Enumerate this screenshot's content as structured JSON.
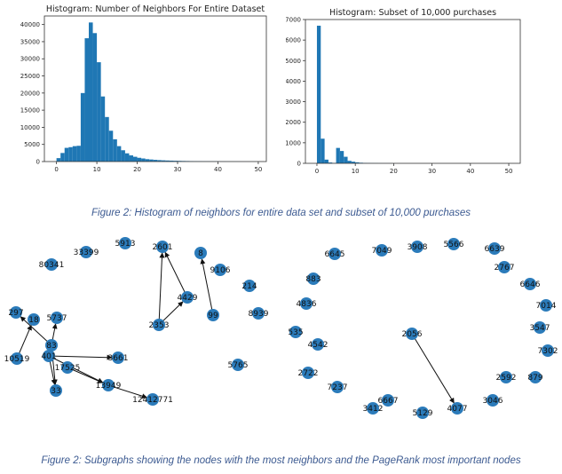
{
  "chart_data": [
    {
      "type": "bar",
      "title": "Histogram:  Number of Neighbors For Entire Dataset",
      "xlabel": "",
      "ylabel": "",
      "xlim": [
        -3,
        52
      ],
      "ylim": [
        0,
        42500
      ],
      "xticks": [
        0,
        10,
        20,
        30,
        40,
        50
      ],
      "yticks": [
        0,
        5000,
        10000,
        15000,
        20000,
        25000,
        30000,
        35000,
        40000
      ],
      "bin_width": 1,
      "bin_starts": [
        0,
        1,
        2,
        3,
        4,
        5,
        6,
        7,
        8,
        9,
        10,
        11,
        12,
        13,
        14,
        15,
        16,
        17,
        18,
        19,
        20,
        21,
        22,
        23,
        24,
        25,
        26,
        27,
        28,
        29,
        30,
        31,
        32,
        33,
        34,
        35,
        36,
        37,
        38,
        39,
        40,
        41,
        42,
        43,
        44,
        45,
        46,
        47,
        48,
        49,
        50
      ],
      "values": [
        1000,
        2500,
        4000,
        4200,
        4500,
        4600,
        20000,
        36000,
        40600,
        37500,
        29000,
        19000,
        13000,
        9000,
        6500,
        4500,
        3300,
        2400,
        1800,
        1400,
        1100,
        900,
        700,
        600,
        500,
        420,
        360,
        310,
        270,
        230,
        200,
        170,
        150,
        130,
        110,
        100,
        90,
        80,
        70,
        60,
        50,
        45,
        40,
        35,
        30,
        25,
        20,
        18,
        15,
        12,
        10
      ]
    },
    {
      "type": "bar",
      "title": "Histogram: Subset of 10,000 purchases",
      "xlabel": "",
      "ylabel": "",
      "xlim": [
        -3,
        53
      ],
      "ylim": [
        0,
        7000
      ],
      "xticks": [
        0,
        10,
        20,
        30,
        40,
        50
      ],
      "yticks": [
        0,
        1000,
        2000,
        3000,
        4000,
        5000,
        6000,
        7000
      ],
      "bin_width": 1,
      "bin_starts": [
        0,
        1,
        2,
        3,
        4,
        5,
        6,
        7,
        8,
        9,
        10,
        11,
        12,
        13,
        14,
        15,
        16,
        17,
        18,
        19
      ],
      "values": [
        6700,
        1200,
        180,
        40,
        20,
        750,
        600,
        320,
        120,
        80,
        50,
        30,
        20,
        15,
        10,
        8,
        6,
        5,
        4,
        3
      ]
    }
  ],
  "captions": {
    "figure1": "Figure 2: Histogram of neighbors for entire data set and subset of 10,000 purchases",
    "figure2": "Figure 2: Subgraphs showing the nodes with the most neighbors and the PageRank most important nodes"
  },
  "graphs": {
    "node_color": "#2b7bba",
    "edge_color": "#111111",
    "left_nodes": [
      "80341",
      "33399",
      "5913",
      "2601",
      "8",
      "9106",
      "4429",
      "214",
      "8939",
      "2353",
      "99",
      "5765",
      "297",
      "18",
      "5737",
      "83",
      "401",
      "10519",
      "17525",
      "3661",
      "33",
      "13949",
      "12412771"
    ],
    "left_edges": [
      [
        "2353",
        "2601"
      ],
      [
        "4429",
        "2601"
      ],
      [
        "2353",
        "4429"
      ],
      [
        "99",
        "8"
      ],
      [
        "83",
        "297"
      ],
      [
        "83",
        "5737"
      ],
      [
        "10519",
        "18"
      ],
      [
        "401",
        "33"
      ],
      [
        "83",
        "33"
      ],
      [
        "401",
        "13949"
      ],
      [
        "13949",
        "12412771"
      ],
      [
        "401",
        "3661"
      ],
      [
        "17525",
        "13949"
      ]
    ],
    "right_nodes": [
      "7049",
      "3908",
      "5566",
      "6639",
      "6645",
      "2767",
      "883",
      "6646",
      "4836",
      "7014",
      "535",
      "3547",
      "2056",
      "4542",
      "7302",
      "2722",
      "2592",
      "879",
      "7237",
      "6667",
      "3046",
      "3412",
      "5129",
      "4077"
    ],
    "right_edges": [
      [
        "2056",
        "4077"
      ]
    ]
  }
}
